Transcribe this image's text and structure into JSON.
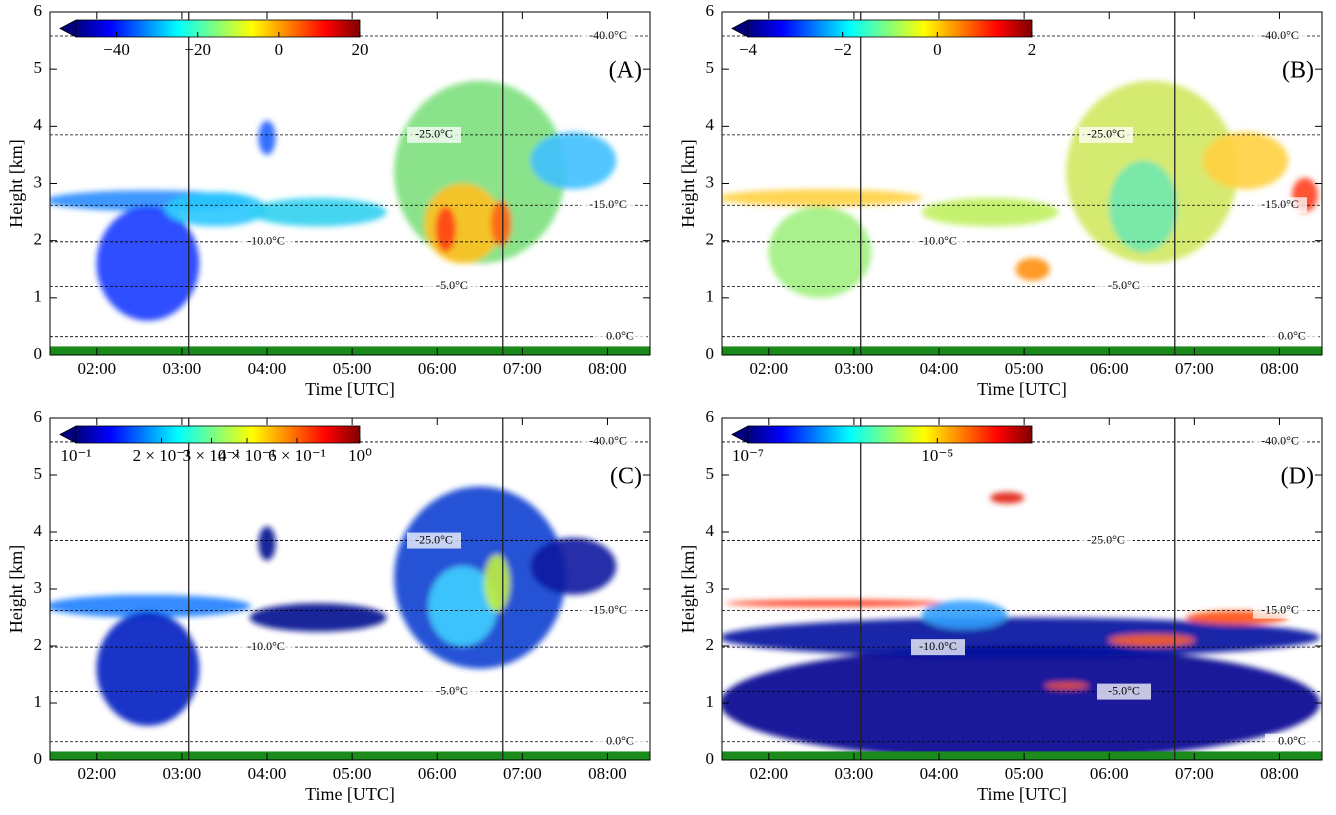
{
  "chart_data": [
    {
      "type": "heatmap",
      "label": "(A)",
      "xlabel": "Time [UTC]",
      "ylabel": "Height [km]",
      "xlim": [
        1.45,
        8.5
      ],
      "xticks": [
        {
          "value": 2,
          "label": "02:00"
        },
        {
          "value": 3,
          "label": "03:00"
        },
        {
          "value": 4,
          "label": "04:00"
        },
        {
          "value": 5,
          "label": "05:00"
        },
        {
          "value": 6,
          "label": "06:00"
        },
        {
          "value": 7,
          "label": "07:00"
        },
        {
          "value": 8,
          "label": "08:00"
        }
      ],
      "ylim": [
        0,
        6
      ],
      "yticks": [
        0,
        1,
        2,
        3,
        4,
        5,
        6
      ],
      "colorbar": {
        "lim": [
          -50,
          20
        ],
        "log": false,
        "ticks": [
          {
            "value": -40,
            "label": "−40"
          },
          {
            "value": -20,
            "label": "−20"
          },
          0,
          20
        ]
      },
      "isotherms": [
        {
          "label": "-40.0°C",
          "height": 5.58
        },
        {
          "label": "-25.0°C",
          "height": 3.85
        },
        {
          "label": "-15.0°C",
          "height": 2.62
        },
        {
          "label": "-10.0°C",
          "height": 1.98
        },
        {
          "label": "-5.0°C",
          "height": 1.2
        },
        {
          "label": "0.0°C",
          "height": 0.32
        }
      ],
      "vlines": [
        3.08,
        6.77
      ]
    },
    {
      "type": "heatmap",
      "label": "(B)",
      "xlabel": "Time [UTC]",
      "ylabel": "Height [km]",
      "xlim": [
        1.45,
        8.5
      ],
      "xticks": [
        {
          "value": 2,
          "label": "02:00"
        },
        {
          "value": 3,
          "label": "03:00"
        },
        {
          "value": 4,
          "label": "04:00"
        },
        {
          "value": 5,
          "label": "05:00"
        },
        {
          "value": 6,
          "label": "06:00"
        },
        {
          "value": 7,
          "label": "07:00"
        },
        {
          "value": 8,
          "label": "08:00"
        }
      ],
      "ylim": [
        0,
        6
      ],
      "yticks": [
        0,
        1,
        2,
        3,
        4,
        5,
        6
      ],
      "colorbar": {
        "lim": [
          -4,
          2
        ],
        "log": false,
        "ticks": [
          {
            "value": -4,
            "label": "−4"
          },
          {
            "value": -2,
            "label": "−2"
          },
          0,
          2
        ]
      },
      "isotherms": [
        {
          "label": "-40.0°C",
          "height": 5.58
        },
        {
          "label": "-25.0°C",
          "height": 3.85
        },
        {
          "label": "-15.0°C",
          "height": 2.62
        },
        {
          "label": "-10.0°C",
          "height": 1.98
        },
        {
          "label": "-5.0°C",
          "height": 1.2
        },
        {
          "label": "0.0°C",
          "height": 0.32
        }
      ],
      "vlines": [
        3.08,
        6.77
      ]
    },
    {
      "type": "heatmap",
      "label": "(C)",
      "xlabel": "Time [UTC]",
      "ylabel": "Height [km]",
      "xlim": [
        1.45,
        8.5
      ],
      "xticks": [
        {
          "value": 2,
          "label": "02:00"
        },
        {
          "value": 3,
          "label": "03:00"
        },
        {
          "value": 4,
          "label": "04:00"
        },
        {
          "value": 5,
          "label": "05:00"
        },
        {
          "value": 6,
          "label": "06:00"
        },
        {
          "value": 7,
          "label": "07:00"
        },
        {
          "value": 8,
          "label": "08:00"
        }
      ],
      "ylim": [
        0,
        6
      ],
      "yticks": [
        0,
        1,
        2,
        3,
        4,
        5,
        6
      ],
      "colorbar": {
        "lim": [
          0.1,
          1
        ],
        "log": true,
        "ticks": [
          {
            "value": 0.1,
            "label": "10⁻¹"
          },
          {
            "value": 0.2,
            "label": "2 × 10⁻¹"
          },
          {
            "value": 0.3,
            "label": "3 × 10⁻¹"
          },
          {
            "value": 0.4,
            "label": "4 × 10⁻¹"
          },
          {
            "value": 0.6,
            "label": "6 × 10⁻¹"
          },
          {
            "value": 1,
            "label": "10⁰"
          }
        ]
      },
      "isotherms": [
        {
          "label": "-40.0°C",
          "height": 5.58
        },
        {
          "label": "-25.0°C",
          "height": 3.85
        },
        {
          "label": "-15.0°C",
          "height": 2.62
        },
        {
          "label": "-10.0°C",
          "height": 1.98
        },
        {
          "label": "-5.0°C",
          "height": 1.2
        },
        {
          "label": "0.0°C",
          "height": 0.32
        }
      ],
      "vlines": [
        3.08,
        6.77
      ]
    },
    {
      "type": "heatmap",
      "label": "(D)",
      "xlabel": "Time [UTC]",
      "ylabel": "Height [km]",
      "xlim": [
        1.45,
        8.5
      ],
      "xticks": [
        {
          "value": 2,
          "label": "02:00"
        },
        {
          "value": 3,
          "label": "03:00"
        },
        {
          "value": 4,
          "label": "04:00"
        },
        {
          "value": 5,
          "label": "05:00"
        },
        {
          "value": 6,
          "label": "06:00"
        },
        {
          "value": 7,
          "label": "07:00"
        },
        {
          "value": 8,
          "label": "08:00"
        }
      ],
      "ylim": [
        0,
        6
      ],
      "yticks": [
        0,
        1,
        2,
        3,
        4,
        5,
        6
      ],
      "colorbar": {
        "lim": [
          1e-07,
          0.0001
        ],
        "log": true,
        "ticks": [
          {
            "value": 1e-07,
            "label": "10⁻⁷"
          },
          {
            "value": 1e-05,
            "label": "10⁻⁵"
          }
        ]
      },
      "isotherms": [
        {
          "label": "-40.0°C",
          "height": 5.58
        },
        {
          "label": "-25.0°C",
          "height": 3.85
        },
        {
          "label": "-15.0°C",
          "height": 2.62
        },
        {
          "label": "-10.0°C",
          "height": 1.98
        },
        {
          "label": "-5.0°C",
          "height": 1.2
        },
        {
          "label": "0.0°C",
          "height": 0.32
        }
      ],
      "vlines": [
        3.08,
        6.77
      ]
    }
  ]
}
